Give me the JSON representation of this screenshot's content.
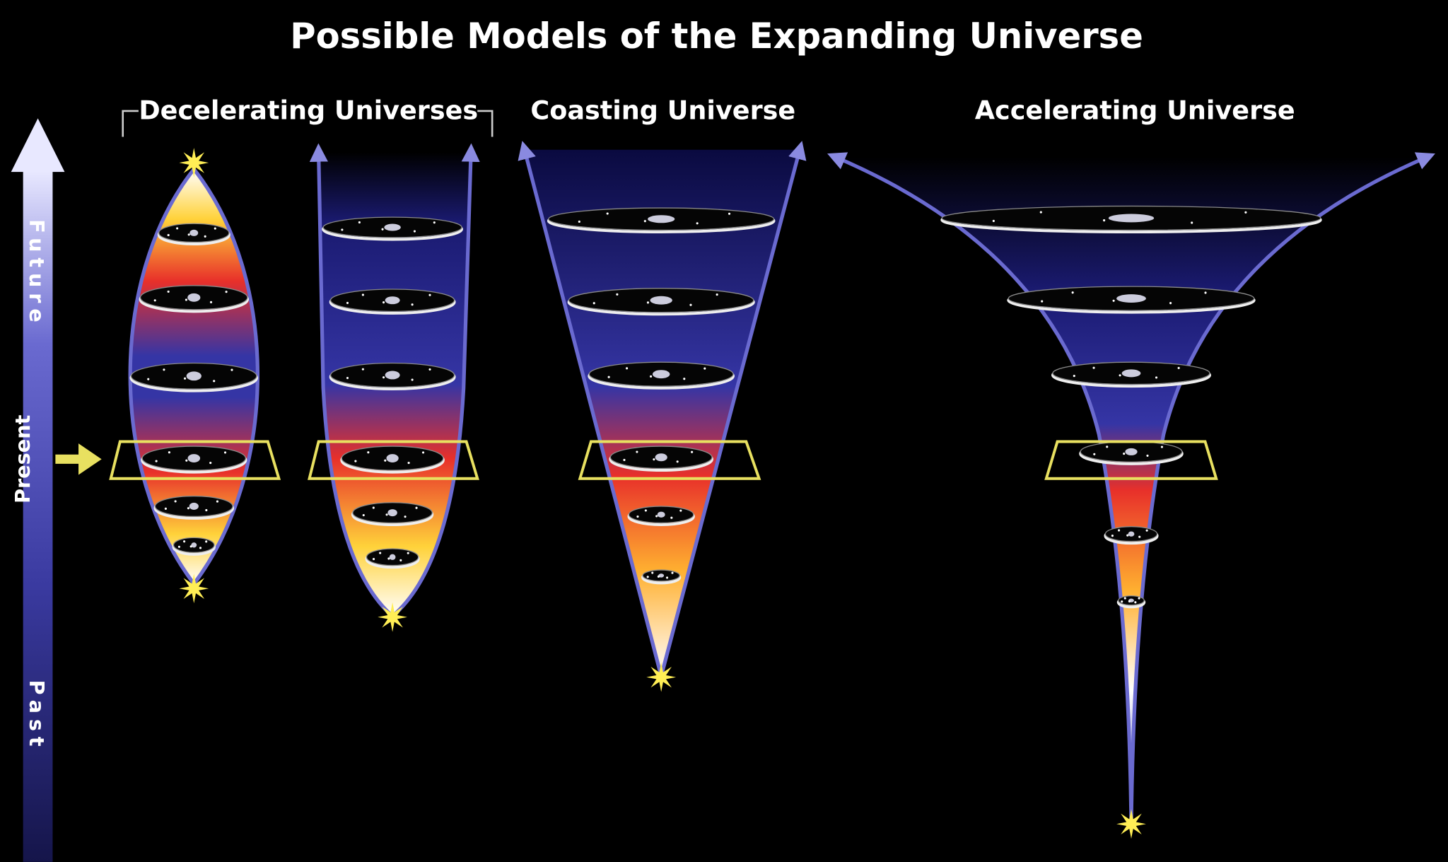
{
  "title": "Possible Models of the Expanding Universe",
  "groups": [
    {
      "label": "Decelerating Universes"
    },
    {
      "label": "Coasting Universe"
    },
    {
      "label": "Accelerating Universe"
    }
  ],
  "timeline": {
    "future": "Future",
    "present": "Present",
    "past": "Past"
  }
}
